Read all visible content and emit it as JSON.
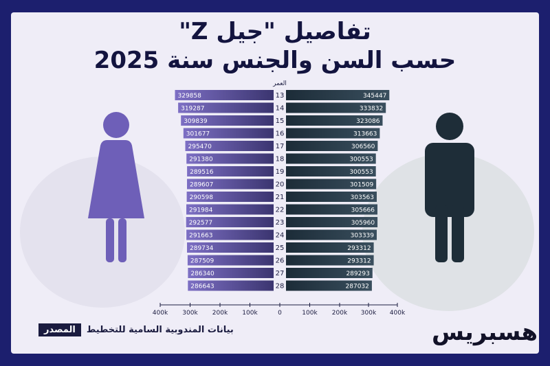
{
  "title_line1": "تفاصيل \"جيل Z\"",
  "title_line2": "حسب السن والجنس سنة 2025",
  "source_label": "المصدر",
  "source_text": "بيانات المندوبية السامية للتخطيط",
  "logo_text": "هسبريس",
  "icons": {
    "female": "woman-figure-icon",
    "male": "man-figure-icon"
  },
  "colors": {
    "female_bar": "#6b5bb0",
    "male_bar": "#2c3e4c",
    "background": "#1c1f6e",
    "card": "#efedf7"
  },
  "chart_data": {
    "type": "bar",
    "orientation": "horizontal-pyramid",
    "category_header": "العمر",
    "categories": [
      "13",
      "14",
      "15",
      "16",
      "17",
      "18",
      "19",
      "20",
      "21",
      "22",
      "23",
      "24",
      "25",
      "26",
      "27",
      "28"
    ],
    "series": [
      {
        "values": [
          329858,
          319287,
          309839,
          301677,
          295470,
          291380,
          289516,
          289607,
          290598,
          291984,
          292577,
          291663,
          289734,
          287509,
          286340,
          286643
        ]
      },
      {
        "values": [
          345447,
          333832,
          323086,
          313663,
          306560,
          300553,
          300553,
          301509,
          303563,
          305666,
          305960,
          303339,
          293312,
          293312,
          289293,
          287032
        ]
      }
    ],
    "axis_ticks": [
      "400k",
      "300k",
      "200k",
      "100k",
      "0",
      "100k",
      "200k",
      "300k",
      "400k"
    ],
    "xlim": [
      0,
      400000
    ]
  }
}
